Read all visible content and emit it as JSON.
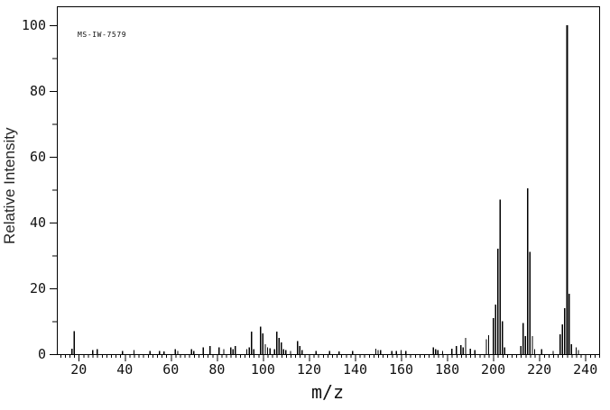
{
  "chart_data": {
    "type": "bar",
    "subtype": "mass-spectrum-stick-plot",
    "spectrum_id": "MS-IW-7579",
    "xlabel": "m/z",
    "ylabel": "Relative Intensity",
    "xlim": [
      10.5,
      246
    ],
    "ylim": [
      0,
      105.75
    ],
    "x_tick_labels": [
      20,
      40,
      60,
      80,
      100,
      120,
      140,
      160,
      180,
      200,
      220,
      240
    ],
    "x_minor_tick_step": 2,
    "y_tick_labels": [
      0,
      20,
      40,
      60,
      80,
      100
    ],
    "y_minor_tick_step": 10,
    "grid": false,
    "legend": "none",
    "bar_color": "#000000",
    "axis_color": "#000000",
    "background_color": "#ffffff",
    "base_peak_mz": 232,
    "peaks_mz_intensity": [
      [
        17,
        1.6
      ],
      [
        18,
        7.0
      ],
      [
        26,
        1.2
      ],
      [
        28,
        1.5
      ],
      [
        39,
        1.0
      ],
      [
        44,
        1.2
      ],
      [
        51,
        1.0
      ],
      [
        55,
        1.0
      ],
      [
        57,
        0.8
      ],
      [
        62,
        1.5
      ],
      [
        63,
        1.0
      ],
      [
        69,
        1.5
      ],
      [
        70,
        1.0
      ],
      [
        74,
        2.0
      ],
      [
        77,
        2.5
      ],
      [
        81,
        2.0
      ],
      [
        83,
        1.5
      ],
      [
        86,
        2.0
      ],
      [
        87,
        1.5
      ],
      [
        88,
        2.5
      ],
      [
        93,
        1.5
      ],
      [
        94,
        2.0
      ],
      [
        95,
        6.8
      ],
      [
        96,
        1.5
      ],
      [
        99,
        8.3
      ],
      [
        100,
        6.3
      ],
      [
        101,
        3.0
      ],
      [
        102,
        2.0
      ],
      [
        103,
        1.8
      ],
      [
        105,
        1.5
      ],
      [
        106,
        6.8
      ],
      [
        107,
        4.9
      ],
      [
        108,
        3.5
      ],
      [
        109,
        1.5
      ],
      [
        110,
        1.2
      ],
      [
        112,
        1.0
      ],
      [
        115,
        4.0
      ],
      [
        116,
        2.5
      ],
      [
        117,
        1.2
      ],
      [
        123,
        1.0
      ],
      [
        129,
        1.0
      ],
      [
        133,
        0.8
      ],
      [
        139,
        1.0
      ],
      [
        149,
        1.7
      ],
      [
        150,
        1.3
      ],
      [
        151,
        1.3
      ],
      [
        156,
        1.0
      ],
      [
        158,
        1.0
      ],
      [
        160,
        1.2
      ],
      [
        162,
        1.0
      ],
      [
        174,
        2.0
      ],
      [
        175,
        1.5
      ],
      [
        176,
        1.3
      ],
      [
        178,
        1.0
      ],
      [
        182,
        1.7
      ],
      [
        184,
        2.5
      ],
      [
        186,
        2.7
      ],
      [
        187,
        2.0
      ],
      [
        188,
        4.9
      ],
      [
        190,
        1.6
      ],
      [
        192,
        1.2
      ],
      [
        197,
        4.5
      ],
      [
        198,
        5.8
      ],
      [
        200,
        11.0
      ],
      [
        201,
        15.0
      ],
      [
        202,
        32.0
      ],
      [
        203,
        47.0
      ],
      [
        204,
        10.0
      ],
      [
        205,
        2.0
      ],
      [
        212,
        2.5
      ],
      [
        213,
        9.5
      ],
      [
        214,
        5.5
      ],
      [
        215,
        50.4
      ],
      [
        216,
        31.1
      ],
      [
        217,
        5.5
      ],
      [
        218,
        1.5
      ],
      [
        221,
        1.5
      ],
      [
        226,
        1.0
      ],
      [
        229,
        6.0
      ],
      [
        230,
        9.0
      ],
      [
        231,
        14.0
      ],
      [
        232,
        100.0
      ],
      [
        233,
        18.4
      ],
      [
        234,
        3.0
      ],
      [
        236,
        2.0
      ],
      [
        237,
        1.2
      ]
    ]
  }
}
